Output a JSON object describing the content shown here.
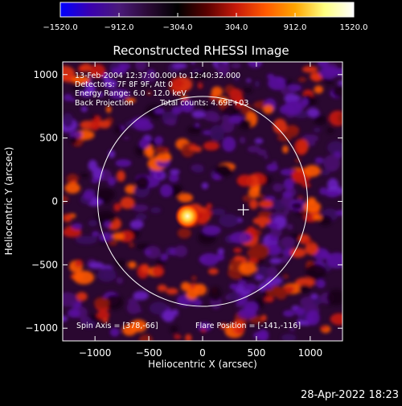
{
  "colorbar": {
    "ticks": [
      "−1520.0",
      "−912.0",
      "−304.0",
      "304.0",
      "912.0",
      "1520.0"
    ],
    "tick_values": [
      -1520,
      -912,
      -304,
      304,
      912,
      1520
    ],
    "range": [
      -1520,
      1520
    ],
    "colors": [
      "#0000ff",
      "#3a00b0",
      "#4a1a7a",
      "#2a0a35",
      "#000000",
      "#5a0000",
      "#c81a0a",
      "#ff5a00",
      "#ffa500",
      "#ffff80",
      "#ffffff"
    ]
  },
  "chart_data": {
    "type": "heatmap",
    "title": "Reconstructed RHESSI Image",
    "xlabel": "Heliocentric X (arcsec)",
    "ylabel": "Heliocentric Y (arcsec)",
    "xlim": [
      -1300,
      1300
    ],
    "ylim": [
      -1100,
      1100
    ],
    "x_ticks": [
      -1000,
      -500,
      0,
      500,
      1000
    ],
    "y_ticks": [
      -1000,
      -500,
      0,
      500,
      1000
    ],
    "x_tick_labels": [
      "−1000",
      "−500",
      "0",
      "500",
      "1000"
    ],
    "y_tick_labels": [
      "−1000",
      "−500",
      "0",
      "500",
      "1000"
    ],
    "solar_limb_radius_arcsec": 975,
    "brightest_source": {
      "x": -141,
      "y": -116
    },
    "marked_position": {
      "x": 378,
      "y": -66
    },
    "annotations": {
      "time": "13-Feb-2004 12:37:00.000 to 12:40:32.000",
      "detectors": "Detectors: 7F 8F 9F, Att 0",
      "energy": "Energy Range: 6.0 - 12.0 keV",
      "method": "Back Projection",
      "counts": "Total counts: 4.69E+03",
      "spin_axis": "Spin Axis = [378,-66]",
      "flare_position": "Flare Position = [-141,-116]"
    }
  },
  "footer": {
    "date": "28-Apr-2022 18:23"
  }
}
